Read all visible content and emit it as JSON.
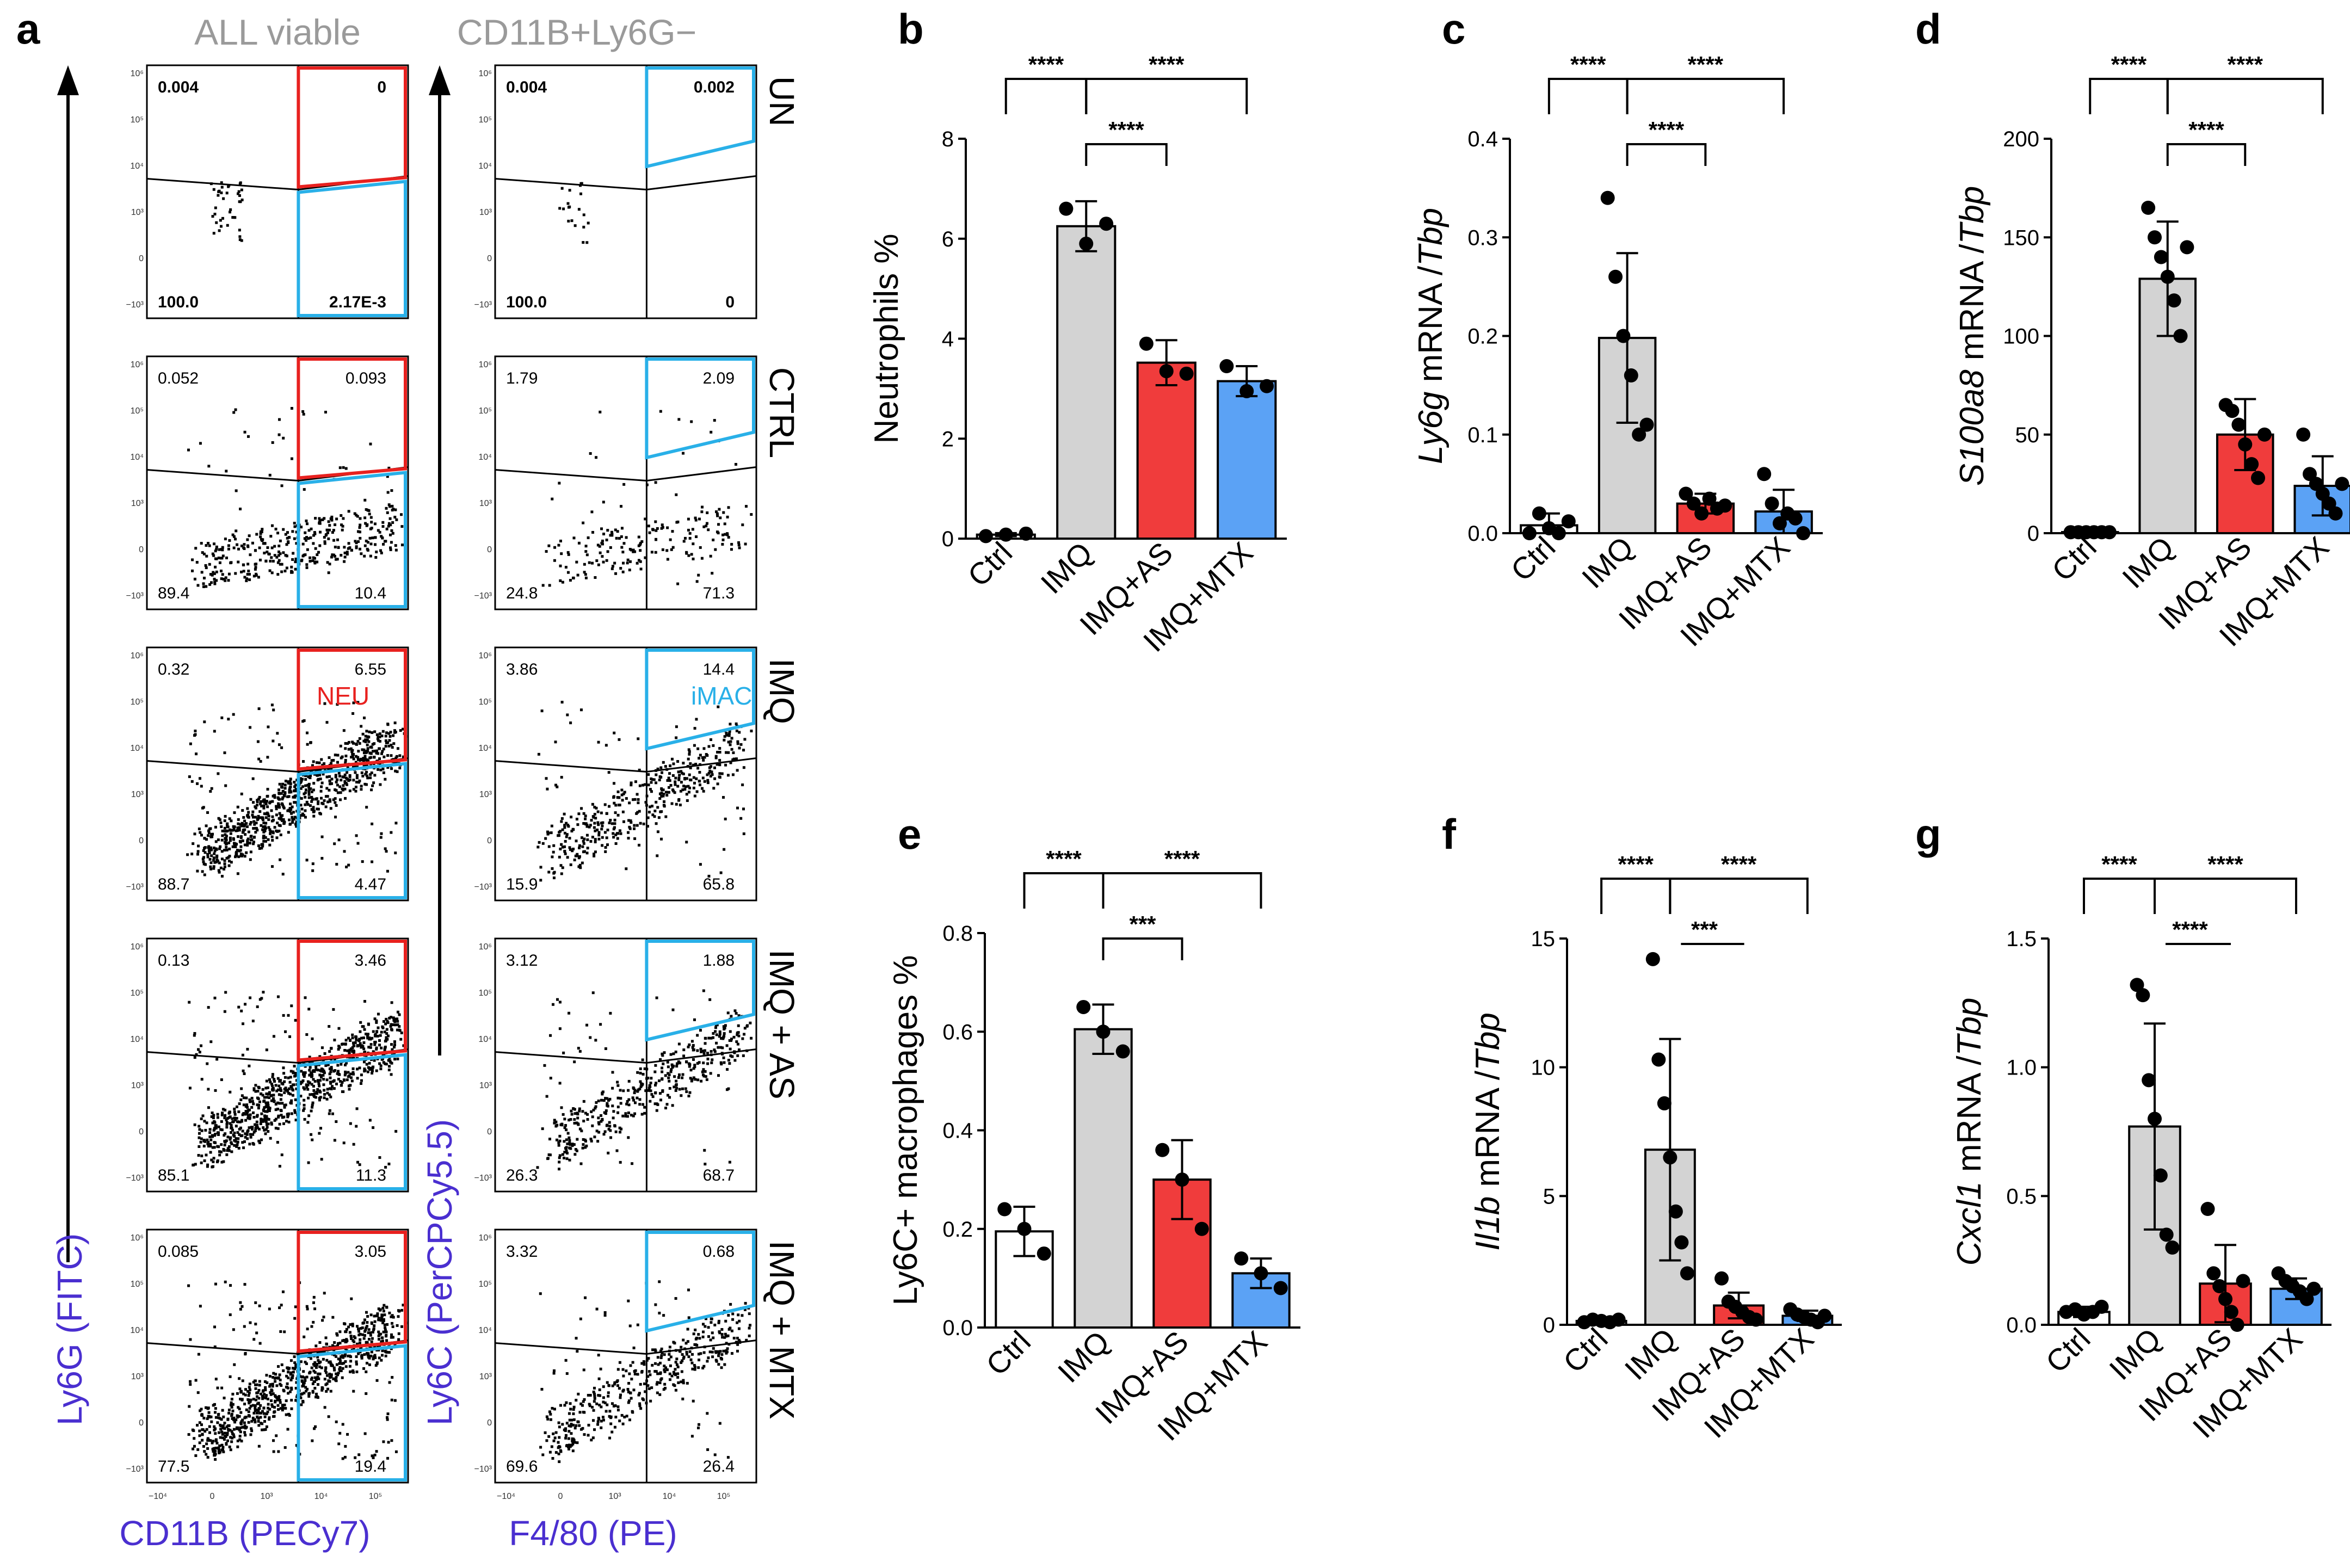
{
  "panel_a": {
    "label": "a",
    "left_title": "ALL viable",
    "right_title": "CD11B+Ly6G−",
    "left_y_axis": "Ly6G (FITC)",
    "left_x_axis": "CD11B (PECy7)",
    "right_y_axis": "Ly6C (PerCPCy5.5)",
    "right_x_axis": "F4/80 (PE)",
    "gate_neu": "NEU",
    "gate_imac": "iMAC",
    "tick_small": [
      "10⁶",
      "10⁵",
      "10⁴",
      "10³",
      "0",
      "−10³",
      "−10⁴",
      "10³",
      "10⁴",
      "10⁵",
      "10⁶"
    ],
    "rows": [
      {
        "label": "UN",
        "left": {
          "tl": "0.004",
          "tr": "0",
          "bl": "100.0",
          "br": "2.17E-3"
        },
        "right": {
          "tl": "0.004",
          "tr": "0.002",
          "bl": "100.0",
          "br": "0"
        }
      },
      {
        "label": "CTRL",
        "left": {
          "tl": "0.052",
          "tr": "0.093",
          "bl": "89.4",
          "br": "10.4"
        },
        "right": {
          "tl": "1.79",
          "tr": "2.09",
          "bl": "24.8",
          "br": "71.3"
        }
      },
      {
        "label": "IMQ",
        "left": {
          "tl": "0.32",
          "tr": "6.55",
          "bl": "88.7",
          "br": "4.47"
        },
        "right": {
          "tl": "3.86",
          "tr": "14.4",
          "bl": "15.9",
          "br": "65.8"
        }
      },
      {
        "label": "IMQ + AS",
        "left": {
          "tl": "0.13",
          "tr": "3.46",
          "bl": "85.1",
          "br": "11.3"
        },
        "right": {
          "tl": "3.12",
          "tr": "1.88",
          "bl": "26.3",
          "br": "68.7"
        }
      },
      {
        "label": "IMQ + MTX",
        "left": {
          "tl": "0.085",
          "tr": "3.05",
          "bl": "77.5",
          "br": "19.4"
        },
        "right": {
          "tl": "3.32",
          "tr": "0.68",
          "bl": "69.6",
          "br": "26.4"
        }
      }
    ]
  },
  "colors": {
    "ctrl": "#ffffff",
    "imq": "#d3d3d3",
    "as": "#f03c3c",
    "mtx": "#5ba2f5",
    "neu_gate": "#e8211f",
    "imac_gate": "#29b0e8",
    "axis_label": "#4a2fd0",
    "title_gray": "#9a9a9a"
  },
  "chart_data": [
    {
      "id": "b",
      "label": "b",
      "type": "bar",
      "ylabel_plain": "Neutrophils %",
      "ylabel_ital": "",
      "ylabel_rest": "",
      "categories": [
        "Ctrl",
        "IMQ",
        "IMQ+AS",
        "IMQ+MTX"
      ],
      "values": [
        0.08,
        6.25,
        3.52,
        3.15
      ],
      "errors": [
        0.03,
        0.5,
        0.45,
        0.3
      ],
      "points": [
        [
          0.05,
          0.08,
          0.1
        ],
        [
          6.6,
          5.9,
          6.3
        ],
        [
          3.9,
          3.35,
          3.3
        ],
        [
          3.45,
          2.95,
          3.05
        ]
      ],
      "ylim": [
        0,
        8
      ],
      "yticks": [
        "0",
        "2",
        "4",
        "6",
        "8"
      ],
      "ytick_values": [
        0,
        2,
        4,
        6,
        8
      ],
      "comparisons": [
        {
          "from": 0,
          "to": 1,
          "label": "****"
        },
        {
          "from": 1,
          "to": 3,
          "label": "****"
        },
        {
          "from": 1,
          "to": 2,
          "label": "****"
        }
      ]
    },
    {
      "id": "c",
      "label": "c",
      "type": "bar",
      "ylabel_plain": "",
      "ylabel_ital": "Ly6g",
      "ylabel_rest": " mRNA /",
      "ylabel_ital2": "Tbp",
      "categories": [
        "Ctrl",
        "IMQ",
        "IMQ+AS",
        "IMQ+MTX"
      ],
      "values": [
        0.008,
        0.198,
        0.03,
        0.022
      ],
      "errors": [
        0.012,
        0.086,
        0.01,
        0.022
      ],
      "points": [
        [
          0.0,
          0.02,
          0.005,
          0.0,
          0.012
        ],
        [
          0.34,
          0.26,
          0.2,
          0.16,
          0.1,
          0.11
        ],
        [
          0.04,
          0.03,
          0.02,
          0.035,
          0.025,
          0.028
        ],
        [
          0.06,
          0.03,
          0.01,
          0.02,
          0.015,
          0.0
        ]
      ],
      "ylim": [
        0,
        0.4
      ],
      "yticks": [
        "0.0",
        "0.1",
        "0.2",
        "0.3",
        "0.4"
      ],
      "ytick_values": [
        0,
        0.1,
        0.2,
        0.3,
        0.4
      ],
      "comparisons": [
        {
          "from": 0,
          "to": 1,
          "label": "****"
        },
        {
          "from": 1,
          "to": 3,
          "label": "****"
        },
        {
          "from": 1,
          "to": 2,
          "label": "****"
        }
      ]
    },
    {
      "id": "d",
      "label": "d",
      "type": "bar",
      "ylabel_plain": "",
      "ylabel_ital": "S100a8",
      "ylabel_rest": " mRNA /",
      "ylabel_ital2": "Tbp",
      "categories": [
        "Ctrl",
        "IMQ",
        "IMQ+AS",
        "IMQ+MTX"
      ],
      "values": [
        0.5,
        129,
        50,
        24
      ],
      "errors": [
        0.5,
        29,
        18,
        15
      ],
      "points": [
        [
          0.5,
          0.5,
          0.5,
          0.5,
          0.5,
          0.5
        ],
        [
          165,
          150,
          140,
          130,
          118,
          100,
          145
        ],
        [
          65,
          62,
          55,
          45,
          35,
          28,
          50
        ],
        [
          50,
          30,
          25,
          20,
          15,
          10,
          25
        ]
      ],
      "ylim": [
        0,
        200
      ],
      "yticks": [
        "0",
        "50",
        "100",
        "150",
        "200"
      ],
      "ytick_values": [
        0,
        50,
        100,
        150,
        200
      ],
      "comparisons": [
        {
          "from": 0,
          "to": 1,
          "label": "****"
        },
        {
          "from": 1,
          "to": 3,
          "label": "****"
        },
        {
          "from": 1,
          "to": 2,
          "label": "****"
        }
      ]
    },
    {
      "id": "e",
      "label": "e",
      "type": "bar",
      "ylabel_plain": "Ly6C+ macrophages %",
      "ylabel_ital": "",
      "ylabel_rest": "",
      "categories": [
        "Ctrl",
        "IMQ",
        "IMQ+AS",
        "IMQ+MTX"
      ],
      "values": [
        0.195,
        0.605,
        0.3,
        0.11
      ],
      "errors": [
        0.05,
        0.05,
        0.08,
        0.03
      ],
      "points": [
        [
          0.24,
          0.2,
          0.15
        ],
        [
          0.65,
          0.6,
          0.56
        ],
        [
          0.36,
          0.3,
          0.2
        ],
        [
          0.14,
          0.11,
          0.08
        ]
      ],
      "ylim": [
        0,
        0.8
      ],
      "yticks": [
        "0.0",
        "0.2",
        "0.4",
        "0.6",
        "0.8"
      ],
      "ytick_values": [
        0,
        0.2,
        0.4,
        0.6,
        0.8
      ],
      "comparisons": [
        {
          "from": 0,
          "to": 1,
          "label": "****"
        },
        {
          "from": 1,
          "to": 3,
          "label": "****"
        },
        {
          "from": 1,
          "to": 2,
          "label": "***"
        }
      ]
    },
    {
      "id": "f",
      "label": "f",
      "type": "bar",
      "ylabel_plain": "",
      "ylabel_ital": "Il1b",
      "ylabel_rest": " mRNA /",
      "ylabel_ital2": "Tbp",
      "categories": [
        "Ctrl",
        "IMQ",
        "IMQ+AS",
        "IMQ+MTX"
      ],
      "values": [
        0.15,
        6.8,
        0.75,
        0.35
      ],
      "errors": [
        0.08,
        4.3,
        0.5,
        0.2
      ],
      "points": [
        [
          0.1,
          0.2,
          0.15,
          0.1,
          0.2
        ],
        [
          14.2,
          10.3,
          8.6,
          6.5,
          4.4,
          3.2,
          2.0
        ],
        [
          1.8,
          0.9,
          0.7,
          0.5,
          0.3,
          0.2
        ],
        [
          0.6,
          0.4,
          0.3,
          0.2,
          0.1,
          0.35
        ]
      ],
      "ylim": [
        0,
        15
      ],
      "yticks": [
        "0",
        "5",
        "10",
        "15"
      ],
      "ytick_values": [
        0,
        5,
        10,
        15
      ],
      "comparisons": [
        {
          "from": 0,
          "to": 1,
          "label": "****",
          "style": "bracket"
        },
        {
          "from": 1,
          "to": 3,
          "label": "****",
          "style": "bracket"
        },
        {
          "from": 1,
          "to": 2,
          "label": "***",
          "style": "line"
        }
      ]
    },
    {
      "id": "g",
      "label": "g",
      "type": "bar",
      "ylabel_plain": "",
      "ylabel_ital": "Cxcl1",
      "ylabel_rest": " mRNA /",
      "ylabel_ital2": "Tbp",
      "categories": [
        "Ctrl",
        "IMQ",
        "IMQ+AS",
        "IMQ+MTX"
      ],
      "values": [
        0.05,
        0.77,
        0.16,
        0.14
      ],
      "errors": [
        0.02,
        0.4,
        0.15,
        0.04
      ],
      "points": [
        [
          0.05,
          0.06,
          0.04,
          0.05,
          0.07
        ],
        [
          1.32,
          1.28,
          0.95,
          0.8,
          0.58,
          0.35,
          0.3
        ],
        [
          0.45,
          0.2,
          0.15,
          0.1,
          0.05,
          0.0,
          0.17
        ],
        [
          0.2,
          0.17,
          0.15,
          0.13,
          0.1,
          0.14
        ]
      ],
      "ylim": [
        0,
        1.5
      ],
      "yticks": [
        "0.0",
        "0.5",
        "1.0",
        "1.5"
      ],
      "ytick_values": [
        0,
        0.5,
        1.0,
        1.5
      ],
      "comparisons": [
        {
          "from": 0,
          "to": 1,
          "label": "****",
          "style": "bracket"
        },
        {
          "from": 1,
          "to": 3,
          "label": "****",
          "style": "bracket"
        },
        {
          "from": 1,
          "to": 2,
          "label": "****",
          "style": "line"
        }
      ]
    }
  ]
}
